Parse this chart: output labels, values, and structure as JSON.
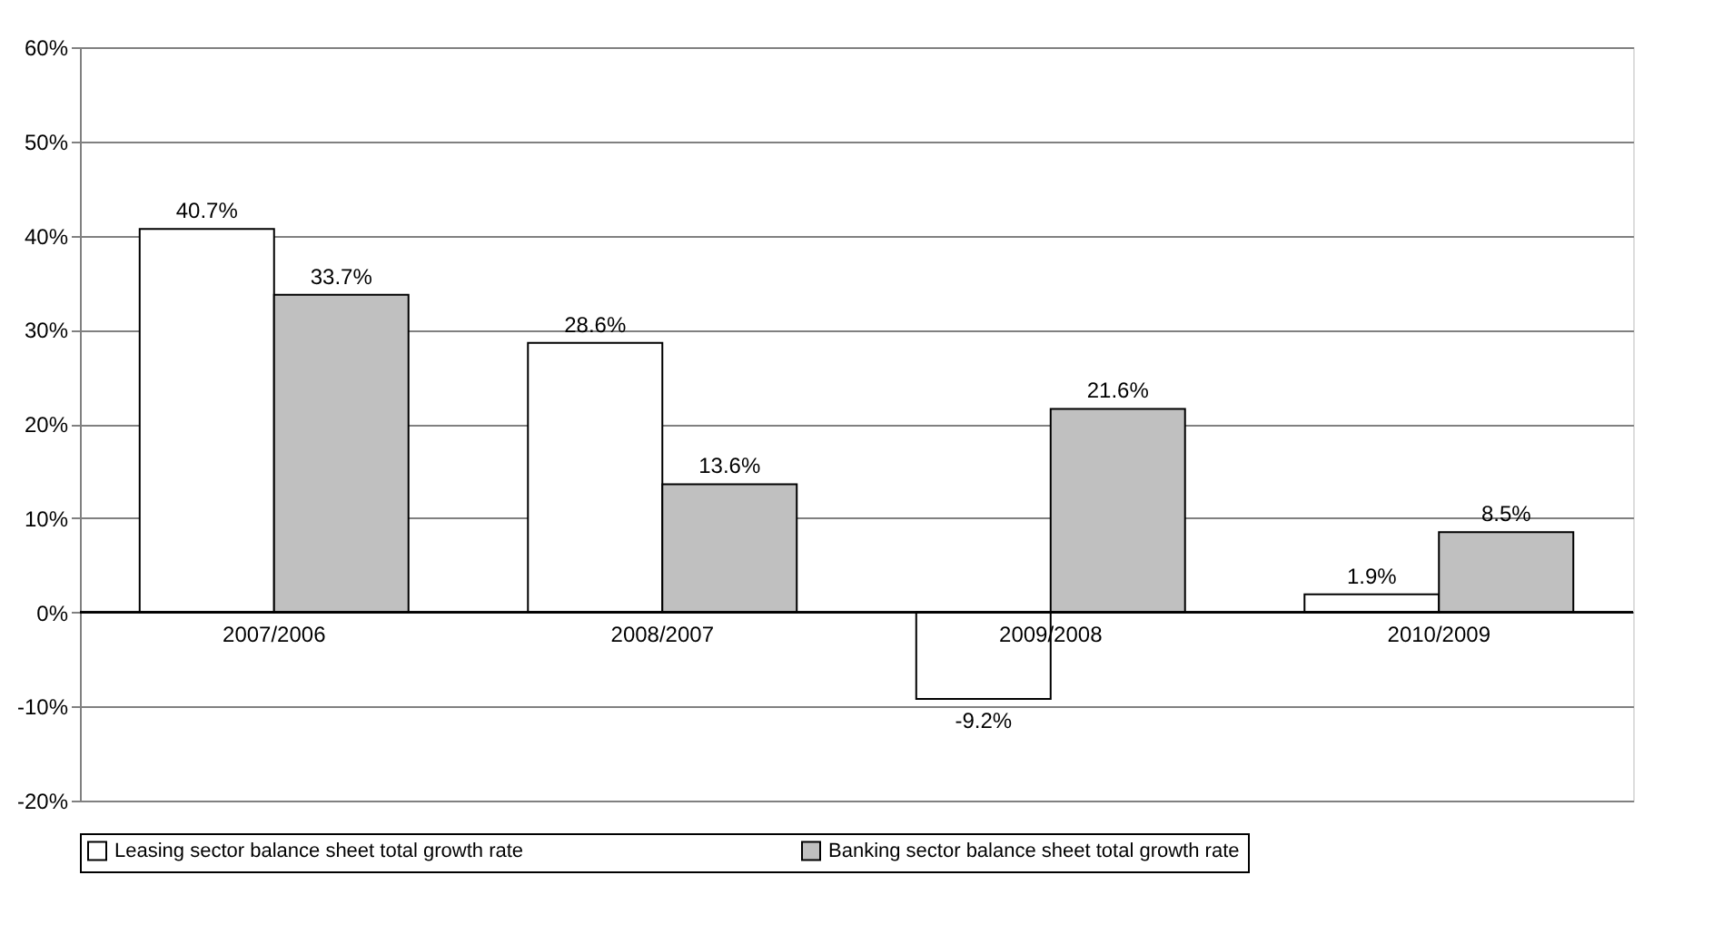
{
  "chart_data": {
    "type": "bar",
    "categories": [
      "2007/2006",
      "2008/2007",
      "2009/2008",
      "2010/2009"
    ],
    "series": [
      {
        "name": "Leasing sector balance sheet total growth rate",
        "color": "#ffffff",
        "values": [
          40.7,
          28.6,
          -9.2,
          1.9
        ],
        "value_labels": [
          "40.7%",
          "28.6%",
          "-9.2%",
          "1.9%"
        ]
      },
      {
        "name": "Banking sector balance sheet total growth rate",
        "color": "#c0c0c0",
        "values": [
          33.7,
          13.6,
          21.6,
          8.5
        ],
        "value_labels": [
          "33.7%",
          "13.6%",
          "21.6%",
          "8.5%"
        ]
      }
    ],
    "ylim": [
      -20,
      60
    ],
    "yticks": [
      {
        "value": -20,
        "label": "-20%"
      },
      {
        "value": -10,
        "label": "-10%"
      },
      {
        "value": 0,
        "label": "0%"
      },
      {
        "value": 10,
        "label": "10%"
      },
      {
        "value": 20,
        "label": "20%"
      },
      {
        "value": 30,
        "label": "30%"
      },
      {
        "value": 40,
        "label": "40%"
      },
      {
        "value": 50,
        "label": "50%"
      },
      {
        "value": 60,
        "label": "60%"
      }
    ],
    "grid": "y",
    "legend": "bottom"
  }
}
